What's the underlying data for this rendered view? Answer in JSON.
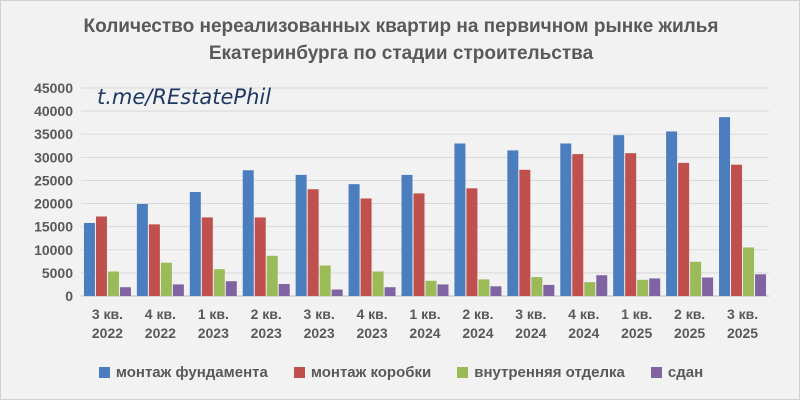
{
  "chart_data": {
    "type": "bar",
    "title": "Количество нереализованных квартир на первичном рынке жилья Екатеринбурга по стадии строительства",
    "title_lines": [
      "Количество нереализованных квартир на первичном рынке жилья",
      "Екатеринбурга по стадии строительства"
    ],
    "watermark": "t.me/REstatePhil",
    "categories": [
      [
        "3 кв.",
        "2022"
      ],
      [
        "4 кв.",
        "2022"
      ],
      [
        "1 кв.",
        "2023"
      ],
      [
        "2 кв.",
        "2023"
      ],
      [
        "3 кв.",
        "2023"
      ],
      [
        "4 кв.",
        "2023"
      ],
      [
        "1 кв.",
        "2024"
      ],
      [
        "2 кв.",
        "2024"
      ],
      [
        "3 кв.",
        "2024"
      ],
      [
        "4 кв.",
        "2024"
      ],
      [
        "1 кв.",
        "2025"
      ],
      [
        "2 кв.",
        "2025"
      ],
      [
        "3 кв.",
        "2025"
      ]
    ],
    "series": [
      {
        "name": "монтаж фундамента",
        "color": "#4a7ebf",
        "values": [
          15800,
          19900,
          22500,
          27200,
          26200,
          24200,
          26200,
          33000,
          31500,
          33000,
          34800,
          35600,
          38700
        ]
      },
      {
        "name": "монтаж коробки",
        "color": "#c0504d",
        "values": [
          17200,
          15500,
          17000,
          17000,
          23100,
          21100,
          22200,
          23300,
          27300,
          30700,
          30900,
          28800,
          28400
        ]
      },
      {
        "name": "внутренняя отделка",
        "color": "#9bbb59",
        "values": [
          5300,
          7200,
          5800,
          8700,
          6600,
          5300,
          3300,
          3600,
          4100,
          3000,
          3500,
          7400,
          10500
        ]
      },
      {
        "name": "сдан",
        "color": "#8064a2",
        "values": [
          1900,
          2500,
          3200,
          2600,
          1400,
          1900,
          2500,
          2100,
          2400,
          4500,
          3800,
          4000,
          4700
        ]
      }
    ],
    "ylim": [
      0,
      45000
    ],
    "yticks": [
      "0",
      "5000",
      "10000",
      "15000",
      "20000",
      "25000",
      "30000",
      "35000",
      "40000",
      "45000"
    ],
    "grid": true,
    "legend_position": "bottom",
    "xlabel": "",
    "ylabel": ""
  }
}
